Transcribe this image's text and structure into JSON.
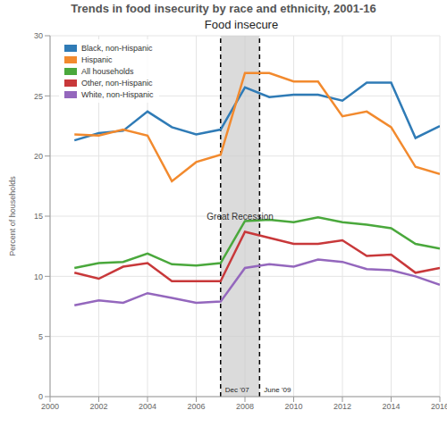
{
  "chart_data": {
    "type": "line",
    "title": "Trends in food insecurity by race and ethnicity, 2001-16",
    "subtitle": "Food insecure",
    "y_label": "Percent of households",
    "x": [
      2001,
      2002,
      2003,
      2004,
      2005,
      2006,
      2007,
      2008,
      2009,
      2010,
      2011,
      2012,
      2013,
      2014,
      2015,
      2016
    ],
    "series": [
      {
        "name": "Black, non-Hispanic",
        "color": "#2f7bb6",
        "values": [
          21.3,
          21.9,
          22.1,
          23.7,
          22.4,
          21.8,
          22.2,
          25.7,
          24.9,
          25.1,
          25.1,
          24.6,
          26.1,
          26.1,
          21.5,
          22.5
        ]
      },
      {
        "name": "Hispanic",
        "color": "#f28a2e",
        "values": [
          21.8,
          21.7,
          22.2,
          21.7,
          17.9,
          19.5,
          20.1,
          26.9,
          26.9,
          26.2,
          26.2,
          23.3,
          23.7,
          22.4,
          19.1,
          18.5
        ]
      },
      {
        "name": "All households",
        "color": "#4aa83c",
        "values": [
          10.7,
          11.1,
          11.2,
          11.9,
          11.0,
          10.9,
          11.1,
          14.6,
          14.7,
          14.5,
          14.9,
          14.5,
          14.3,
          14.0,
          12.7,
          12.3
        ]
      },
      {
        "name": "Other, non-Hispanic",
        "color": "#c8383a",
        "values": [
          10.3,
          9.8,
          10.8,
          11.1,
          9.6,
          9.6,
          9.6,
          13.7,
          13.2,
          12.7,
          12.7,
          13.0,
          11.7,
          11.8,
          10.3,
          10.7
        ]
      },
      {
        "name": "White, non-Hispanic",
        "color": "#9467bd",
        "values": [
          7.6,
          8.0,
          7.8,
          8.6,
          8.2,
          7.8,
          7.9,
          10.7,
          11.0,
          10.8,
          11.4,
          11.2,
          10.6,
          10.5,
          10.0,
          9.3
        ]
      }
    ],
    "xlim": [
      2000,
      2016
    ],
    "xticks": [
      2000,
      2002,
      2004,
      2006,
      2008,
      2010,
      2012,
      2014,
      2016
    ],
    "ylim": [
      0,
      30
    ],
    "yticks": [
      0,
      5,
      10,
      15,
      20,
      25,
      30
    ],
    "grid": true,
    "legend": "upper left",
    "recession": {
      "label": "Great Recession",
      "start": 2007,
      "end": 2008.6,
      "start_label": "Dec '07",
      "end_label": "June '09"
    }
  }
}
